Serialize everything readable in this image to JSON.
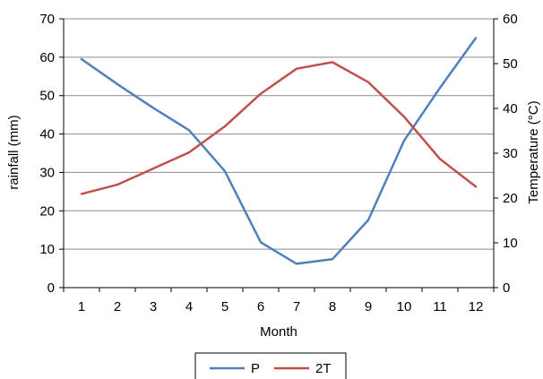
{
  "chart_data": {
    "type": "line",
    "title": "",
    "xlabel": "Month",
    "ylabel": "rainfall (mm)",
    "y2label": "Temperature (°C)",
    "categories": [
      "1",
      "2",
      "3",
      "4",
      "5",
      "6",
      "7",
      "8",
      "9",
      "10",
      "11",
      "12"
    ],
    "ylim": [
      0,
      70
    ],
    "yticks": [
      0,
      10,
      20,
      30,
      40,
      50,
      60,
      70
    ],
    "y2lim": [
      0,
      60
    ],
    "y2ticks": [
      0,
      10,
      20,
      30,
      40,
      50,
      60
    ],
    "grid": true,
    "legend_position": "bottom",
    "series": [
      {
        "name": "P",
        "axis": "left",
        "color": "#4f81bd",
        "values": [
          59.5,
          53,
          46.8,
          41,
          30.3,
          11.8,
          6.2,
          7.4,
          17.6,
          38.3,
          52,
          65
        ]
      },
      {
        "name": "2T",
        "axis": "left",
        "color": "#c0504d",
        "values": [
          24.4,
          26.8,
          31,
          35.2,
          42,
          50.5,
          57,
          58.7,
          53.5,
          44.5,
          33.5,
          26.3
        ]
      }
    ]
  }
}
